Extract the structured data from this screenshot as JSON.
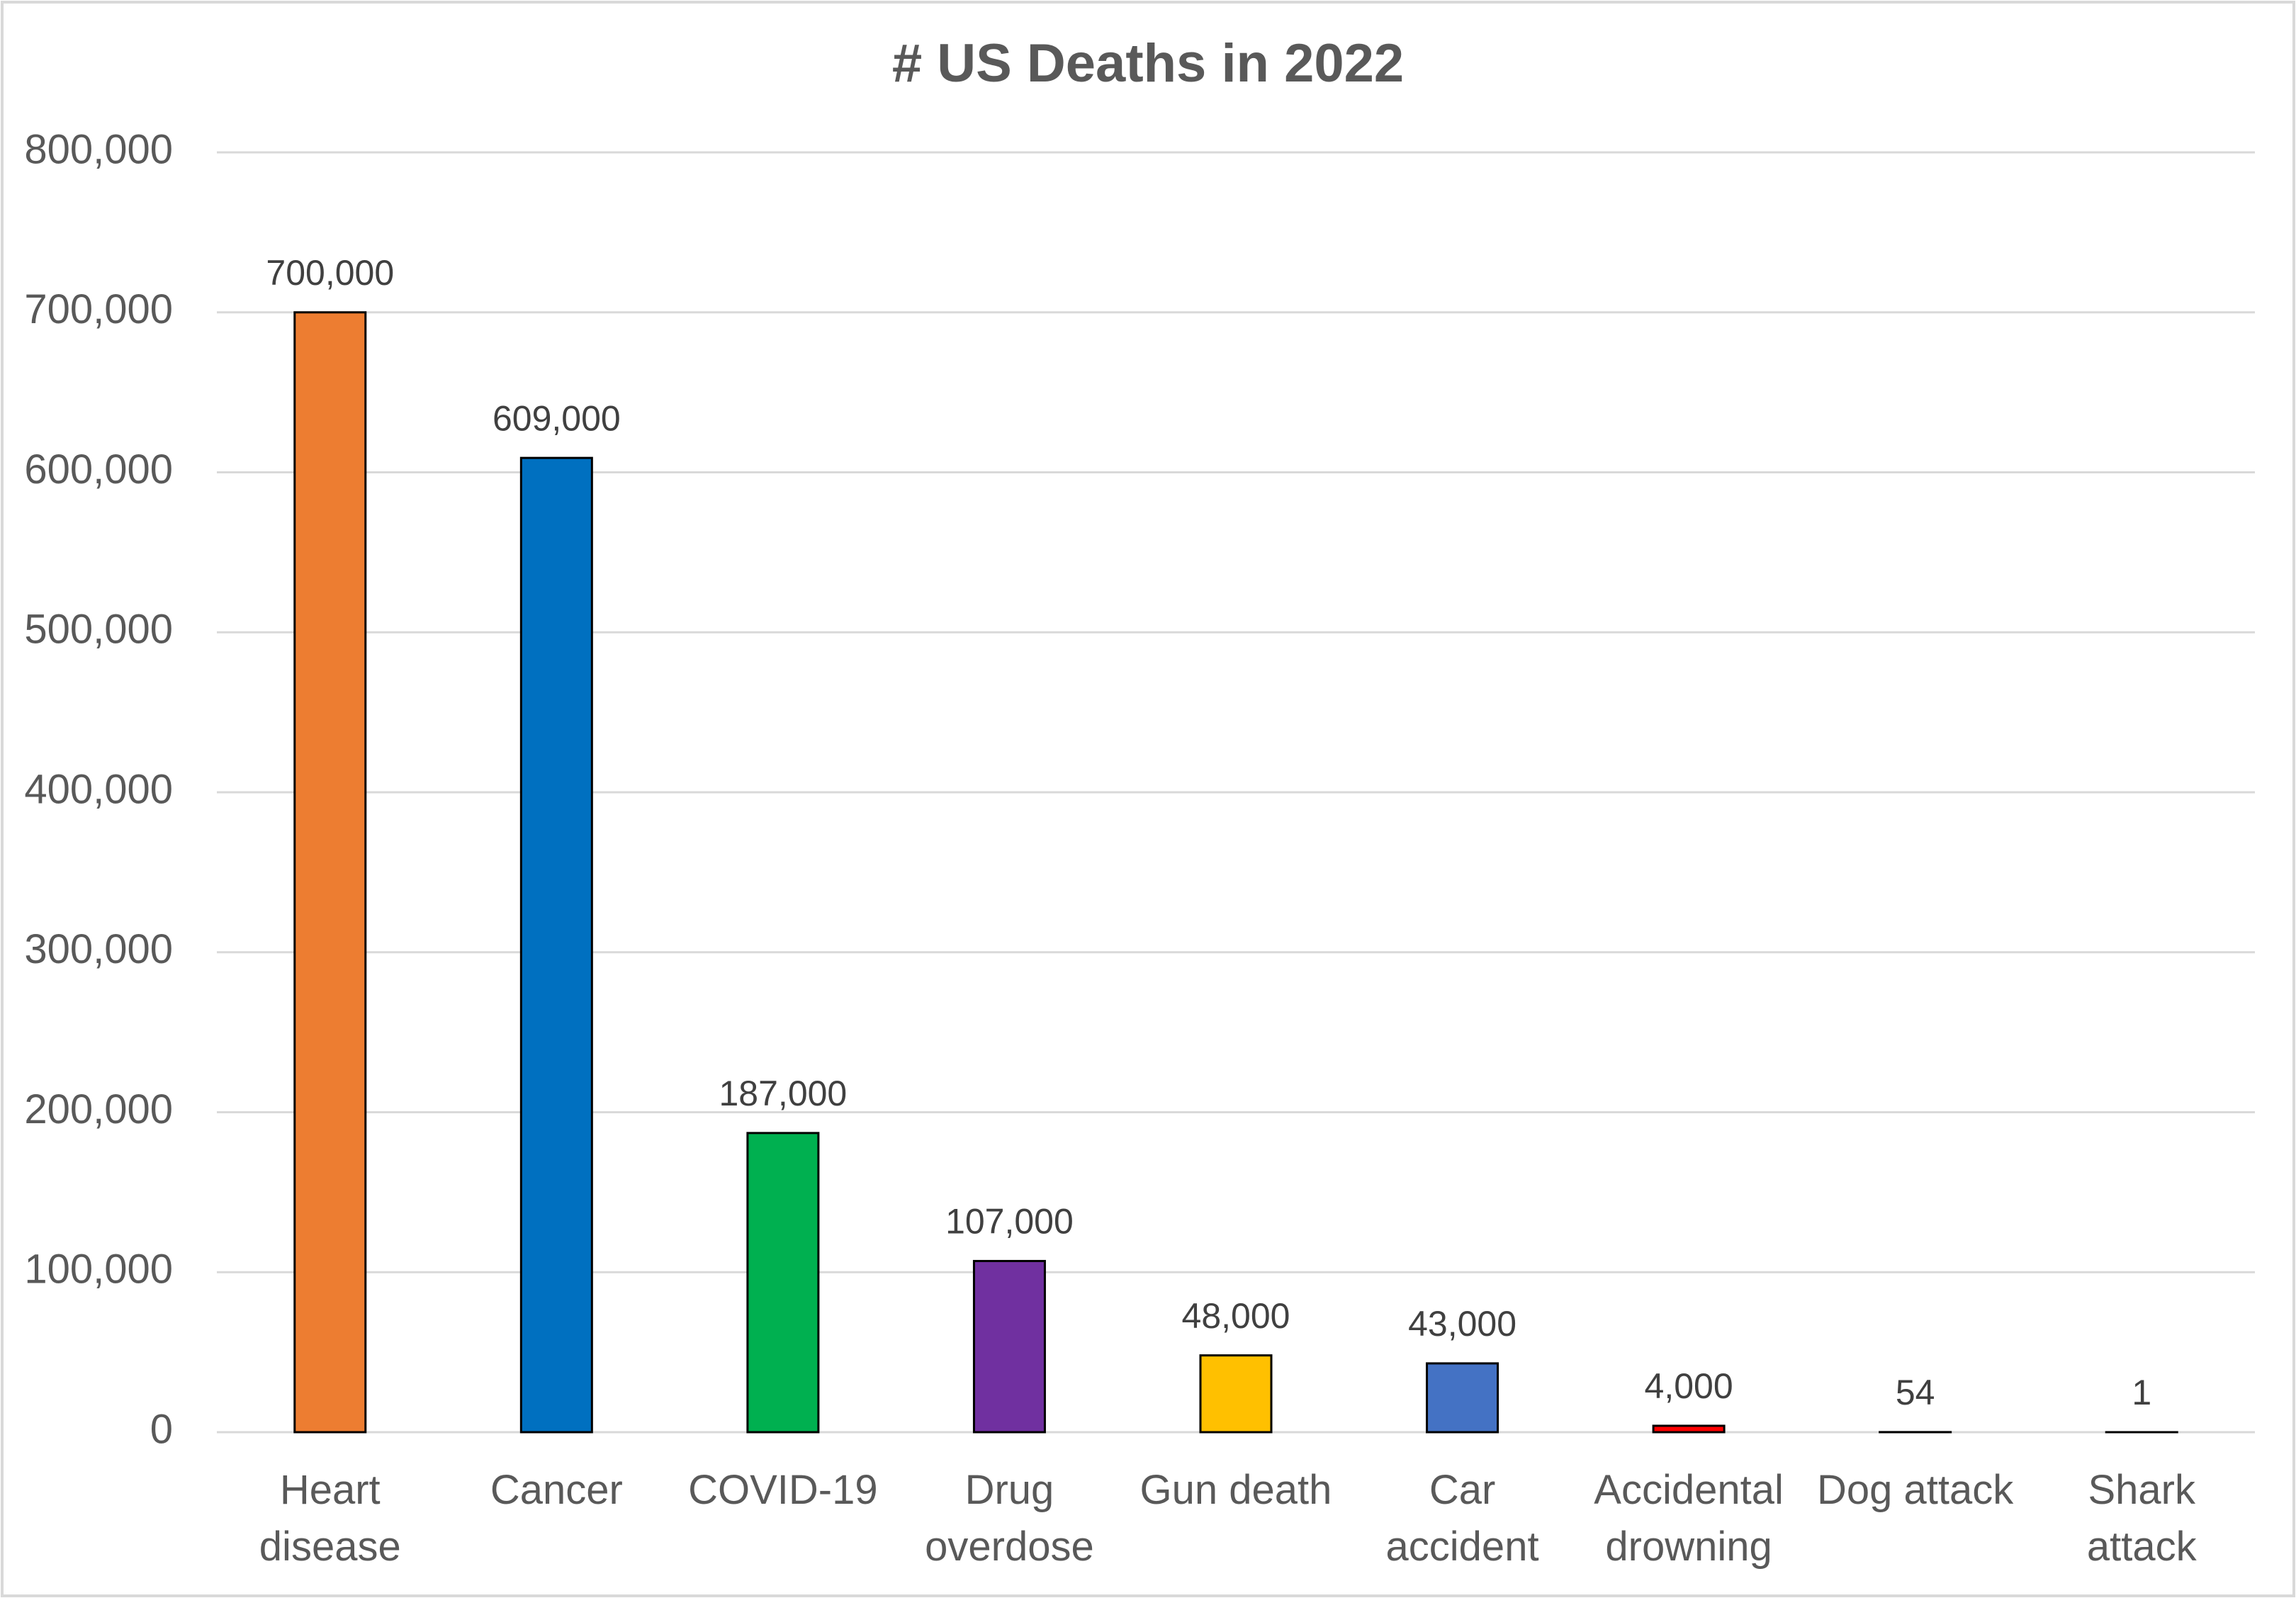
{
  "chart_data": {
    "type": "bar",
    "title": "# US Deaths in 2022",
    "categories": [
      "Heart disease",
      "Cancer",
      "COVID-19",
      "Drug overdose",
      "Gun death",
      "Car accident",
      "Accidental drowning",
      "Dog attack",
      "Shark attack"
    ],
    "values": [
      700000,
      609000,
      187000,
      107000,
      48000,
      43000,
      4000,
      54,
      1
    ],
    "value_labels": [
      "700,000",
      "609,000",
      "187,000",
      "107,000",
      "48,000",
      "43,000",
      "4,000",
      "54",
      "1"
    ],
    "colors": [
      "#ed7d31",
      "#0070c0",
      "#00b050",
      "#7030a0",
      "#ffc000",
      "#4472c4",
      "#ff0000",
      "#a5a5a5",
      "#a5a5a5"
    ],
    "ylim": [
      0,
      800000
    ],
    "yticks": [
      0,
      {
        "value": 100000,
        "label": "100,000"
      },
      {
        "value": 200000,
        "label": "200,000"
      },
      {
        "value": 300000,
        "label": "300,000"
      },
      {
        "value": 400000,
        "label": "400,000"
      },
      {
        "value": 500000,
        "label": "500,000"
      },
      {
        "value": 600000,
        "label": "600,000"
      },
      {
        "value": 700000,
        "label": "700,000"
      },
      {
        "value": 800000,
        "label": "800,000"
      }
    ],
    "grid": true
  }
}
